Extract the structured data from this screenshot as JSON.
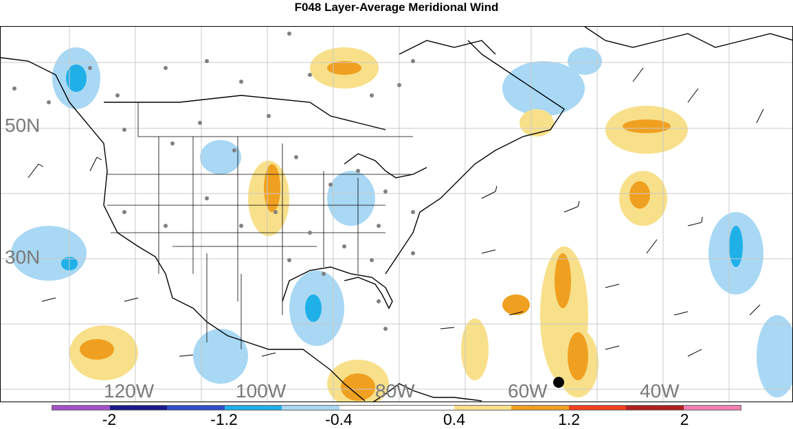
{
  "title": "F048 Layer-Average Meridional Wind",
  "latitude_labels": [
    "50N",
    "30N"
  ],
  "longitude_labels": [
    "120W",
    "100W",
    "80W",
    "60W",
    "40W"
  ],
  "colorbar": {
    "colors": [
      "#a550c8",
      "#1a1a8c",
      "#3050c8",
      "#20b0e8",
      "#a8d8f4",
      "#ffffff",
      "#ffffff",
      "#f8e08a",
      "#f0a020",
      "#f04020",
      "#b02020",
      "#f080b0"
    ],
    "tick_labels": [
      "-2",
      "-1.2",
      "-0.4",
      "0.4",
      "1.2",
      "2"
    ]
  },
  "map_colors": {
    "positive_light": "#f8e08a",
    "positive_strong": "#f0a020",
    "negative_light": "#a8d8f4",
    "negative_strong": "#20b0e8",
    "station": "#808080",
    "grid": "#c8c8c8",
    "coast": "#000000"
  },
  "marker": {
    "label": "",
    "color": "#000000"
  }
}
